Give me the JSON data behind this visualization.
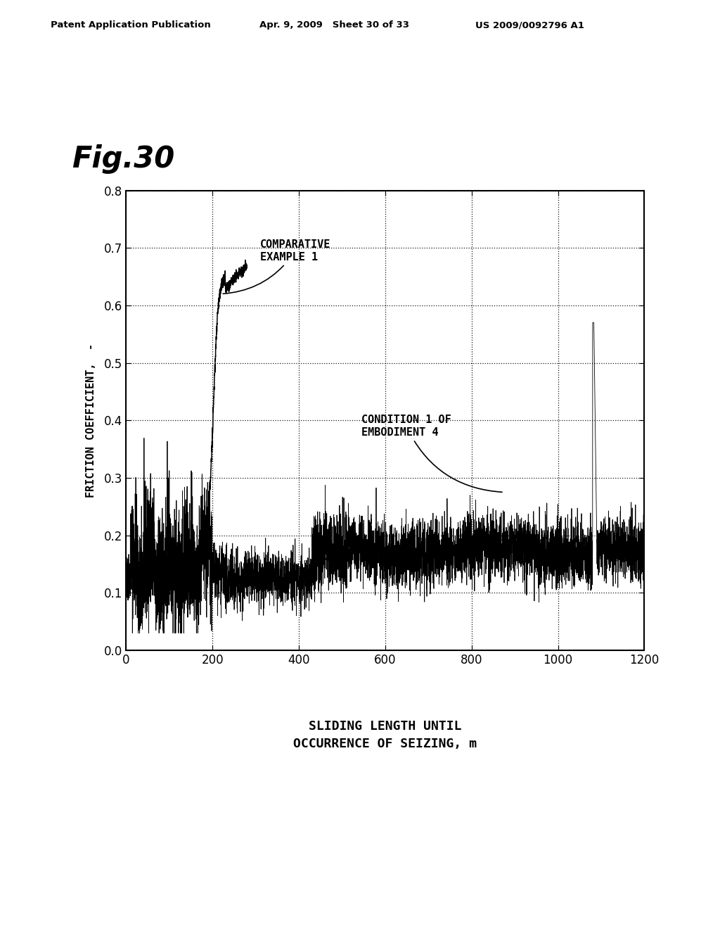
{
  "fig_label": "Fig.30",
  "header_left": "Patent Application Publication",
  "header_mid": "Apr. 9, 2009   Sheet 30 of 33",
  "header_right": "US 2009/0092796 A1",
  "xlabel_line1": "SLIDING LENGTH UNTIL",
  "xlabel_line2": "OCCURRENCE OF SEIZING, m",
  "ylabel": "FRICTION COEFFICIENT,  -",
  "xlim": [
    0,
    1200
  ],
  "ylim": [
    0,
    0.8
  ],
  "xticks": [
    0,
    200,
    400,
    600,
    800,
    1000,
    1200
  ],
  "yticks": [
    0,
    0.1,
    0.2,
    0.3,
    0.4,
    0.5,
    0.6,
    0.7,
    0.8
  ],
  "label_comp": "COMPARATIVE\nEXAMPLE 1",
  "label_cond": "CONDITION 1 OF\nEMBODIMENT 4",
  "background_color": "#ffffff",
  "line_color": "#000000"
}
